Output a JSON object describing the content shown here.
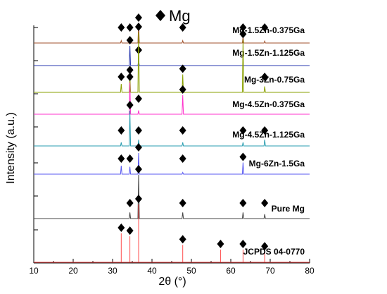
{
  "chart_data": {
    "type": "line",
    "xlabel": "2θ (°)",
    "ylabel": "Intensity (a.u.)",
    "xlim": [
      10,
      80
    ],
    "xticks": [
      "10",
      "20",
      "30",
      "40",
      "50",
      "60",
      "70",
      "80"
    ],
    "legend": {
      "label": "Mg",
      "marker": "diamond",
      "placement": "top-center"
    },
    "grid": false,
    "series": [
      {
        "name": "Mg-1.5Zn-0.375Ga",
        "color": "#a0522d",
        "peaks": [
          [
            32.2,
            0.12
          ],
          [
            34.4,
            0.12
          ],
          [
            36.6,
            1.0
          ],
          [
            47.8,
            0.12
          ],
          [
            63.1,
            0.3
          ],
          [
            68.6,
            0.1
          ]
        ],
        "markers": [
          32.2,
          34.4,
          36.6,
          47.8,
          63.1,
          68.6
        ]
      },
      {
        "name": "Mg-1.5Zn-1.125Ga",
        "color": "#2b3bb0",
        "peaks": [
          [
            34.4,
            1.0
          ],
          [
            36.6,
            0.25
          ]
        ],
        "markers": [
          34.4,
          36.6
        ]
      },
      {
        "name": "Mg-3Zn-0.75Ga",
        "color": "#8aa000",
        "peaks": [
          [
            32.2,
            0.14
          ],
          [
            34.4,
            0.28
          ],
          [
            36.6,
            1.0
          ],
          [
            47.8,
            0.3
          ],
          [
            63.1,
            0.88
          ],
          [
            68.6,
            0.1
          ]
        ],
        "markers": [
          32.2,
          34.4,
          36.6,
          47.8,
          63.1,
          68.6
        ]
      },
      {
        "name": "Mg-4.5Zn-0.375Ga",
        "color": "#ff33cc",
        "peaks": [
          [
            34.4,
            1.0
          ],
          [
            36.6,
            0.12
          ],
          [
            47.8,
            0.6
          ]
        ],
        "markers": [
          34.4,
          36.6,
          47.8
        ]
      },
      {
        "name": "Mg-4.5Zn-1.125Ga",
        "color": "#2a9db0",
        "peaks": [
          [
            32.2,
            0.1
          ],
          [
            34.4,
            1.0
          ],
          [
            36.6,
            0.18
          ],
          [
            47.8,
            0.1
          ],
          [
            63.1,
            0.1
          ],
          [
            68.6,
            0.18
          ]
        ],
        "markers": [
          32.2,
          34.4,
          36.6,
          47.8,
          63.1,
          68.6
        ]
      },
      {
        "name": "Mg-6Zn-1.5Ga",
        "color": "#5a5af0",
        "peaks": [
          [
            32.2,
            0.4
          ],
          [
            34.4,
            0.35
          ],
          [
            36.6,
            1.0
          ],
          [
            47.8,
            0.08
          ],
          [
            63.1,
            0.55
          ]
        ],
        "markers": [
          32.2,
          34.4,
          36.6,
          47.8,
          63.1
        ]
      },
      {
        "name": "Pure Mg",
        "color": "#444444",
        "peaks": [
          [
            34.4,
            0.14
          ],
          [
            36.6,
            1.0
          ],
          [
            47.8,
            0.14
          ],
          [
            63.1,
            0.14
          ],
          [
            68.6,
            0.1
          ]
        ],
        "markers": [
          34.4,
          36.6,
          47.8,
          63.1,
          68.6
        ]
      },
      {
        "name": "JCPDS 04-0770",
        "color": "#ff4d4d",
        "style": "sticks",
        "peaks": [
          [
            32.2,
            0.5
          ],
          [
            34.4,
            0.45
          ],
          [
            36.6,
            1.0
          ],
          [
            47.8,
            0.3
          ],
          [
            57.4,
            0.22
          ],
          [
            63.1,
            0.22
          ],
          [
            68.6,
            0.18
          ]
        ],
        "markers": [
          32.2,
          34.4,
          36.6,
          47.8,
          57.4,
          63.1,
          68.6
        ]
      }
    ]
  }
}
